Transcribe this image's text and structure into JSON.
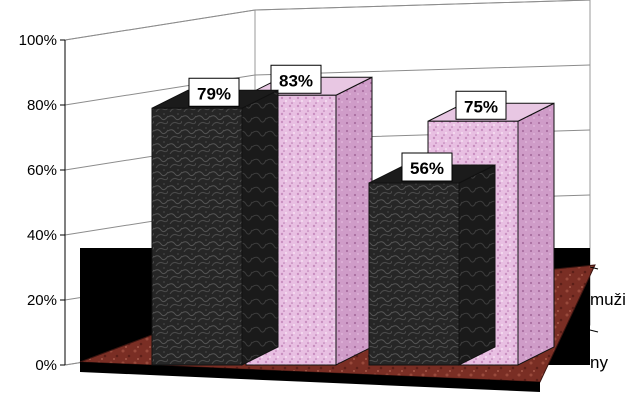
{
  "chart_data": {
    "type": "bar",
    "style": "3d-clustered-column",
    "ylim": [
      0,
      100
    ],
    "y_ticks": [
      "0%",
      "20%",
      "40%",
      "60%",
      "80%",
      "100%"
    ],
    "value_suffix": "%",
    "depth_series_labels": [
      "muži",
      "ny"
    ],
    "series": [
      {
        "label": "muži",
        "color": "#e6b8e0",
        "values": [
          83,
          75
        ]
      },
      {
        "label": "ny",
        "color": "#2a2a2a",
        "values": [
          79,
          56
        ]
      }
    ],
    "colors": {
      "floor": "#7a2e24",
      "back_series": "#e6b8e0",
      "front_series": "#2a2a2a"
    }
  }
}
